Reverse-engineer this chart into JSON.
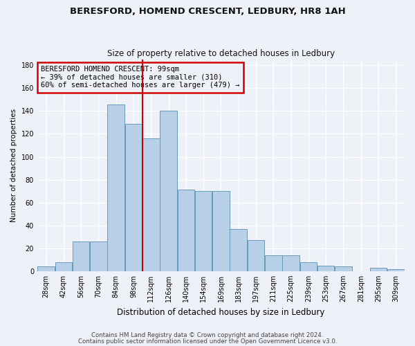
{
  "title1": "BERESFORD, HOMEND CRESCENT, LEDBURY, HR8 1AH",
  "title2": "Size of property relative to detached houses in Ledbury",
  "xlabel": "Distribution of detached houses by size in Ledbury",
  "ylabel": "Number of detached properties",
  "categories": [
    "28sqm",
    "42sqm",
    "56sqm",
    "70sqm",
    "84sqm",
    "98sqm",
    "112sqm",
    "126sqm",
    "140sqm",
    "154sqm",
    "169sqm",
    "183sqm",
    "197sqm",
    "211sqm",
    "225sqm",
    "239sqm",
    "253sqm",
    "267sqm",
    "281sqm",
    "295sqm",
    "309sqm"
  ],
  "values": [
    4,
    8,
    26,
    26,
    146,
    129,
    116,
    140,
    71,
    70,
    70,
    37,
    27,
    14,
    14,
    8,
    5,
    4,
    0,
    3,
    2
  ],
  "bar_color": "#b8d0e8",
  "bar_edge_color": "#6699bb",
  "vline_x_index": 5,
  "vline_color": "#cc0000",
  "annotation_title": "BERESFORD HOMEND CRESCENT: 99sqm",
  "annotation_line1": "← 39% of detached houses are smaller (310)",
  "annotation_line2": "60% of semi-detached houses are larger (479) →",
  "annotation_box_color": "#cc0000",
  "ylim": [
    0,
    185
  ],
  "yticks": [
    0,
    20,
    40,
    60,
    80,
    100,
    120,
    140,
    160,
    180
  ],
  "footer1": "Contains HM Land Registry data © Crown copyright and database right 2024.",
  "footer2": "Contains public sector information licensed under the Open Government Licence v3.0.",
  "bg_color": "#eef2f8"
}
